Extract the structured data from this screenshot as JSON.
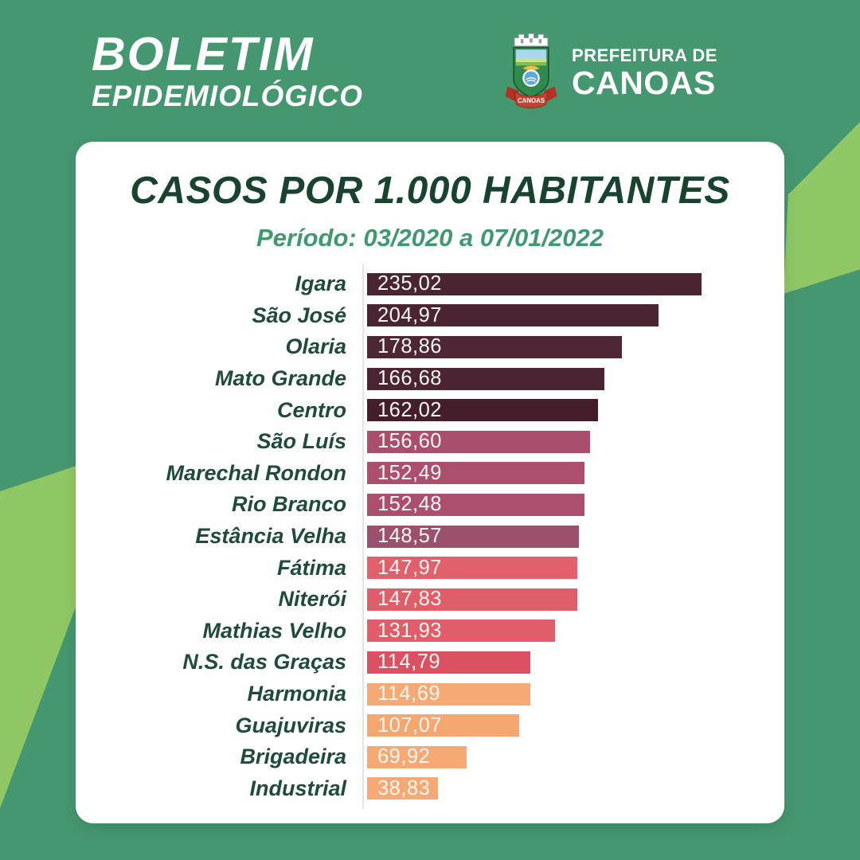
{
  "page": {
    "background_color": "#45976F",
    "accent_shape_color": "#8FC765"
  },
  "header": {
    "title_line1": "BOLETIM",
    "title_line2": "EPIDEMIOLÓGICO",
    "org_name_line1": "PREFEITURA DE",
    "org_name_line2": "CANOAS",
    "logo_ribbon_text": "CANOAS"
  },
  "card": {
    "title": "CASOS POR 1.000 HABITANTES",
    "subtitle": "Período: 03/2020 a 07/01/2022"
  },
  "chart_data": {
    "type": "bar",
    "orientation": "horizontal",
    "title": "CASOS POR 1.000 HABITANTES",
    "period_label": "Período: 03/2020 a 07/01/2022",
    "categories": [
      "Igara",
      "São José",
      "Olaria",
      "Mato Grande",
      "Centro",
      "São Luís",
      "Marechal Rondon",
      "Rio Branco",
      "Estância Velha",
      "Fátima",
      "Niterói",
      "Mathias Velho",
      "N.S. das Graças",
      "Harmonia",
      "Guajuviras",
      "Brigadeira",
      "Industrial"
    ],
    "values": [
      235.02,
      204.97,
      178.86,
      166.68,
      162.02,
      156.6,
      152.49,
      152.48,
      148.57,
      147.97,
      147.83,
      131.93,
      114.79,
      114.69,
      107.07,
      69.92,
      38.83
    ],
    "value_labels": [
      "235,02",
      "204,97",
      "178,86",
      "166,68",
      "162,02",
      "156,60",
      "152,49",
      "152,48",
      "148,57",
      "147,97",
      "147,83",
      "131,93",
      "114,79",
      "114,69",
      "107,07",
      "69,92",
      "38,83"
    ],
    "bar_colors": [
      "#4B2433",
      "#4B2433",
      "#4E2635",
      "#4B2433",
      "#441F2B",
      "#A94E6D",
      "#AC4F6E",
      "#AC4F6E",
      "#9B516E",
      "#E25F6C",
      "#E05D6A",
      "#E05D6A",
      "#DB5161",
      "#F6A972",
      "#F5A76F",
      "#F6A972",
      "#F6A972"
    ],
    "xlim": [
      0,
      235.02
    ],
    "grid": false,
    "legend": "none",
    "value_label_position": "inside-left",
    "category_label_color": "#1E4B3A",
    "value_label_color": "#FBF7F2",
    "axis_line_color": "#E4E4E4",
    "title_color": "#17432F",
    "subtitle_color": "#3E9A6E"
  }
}
